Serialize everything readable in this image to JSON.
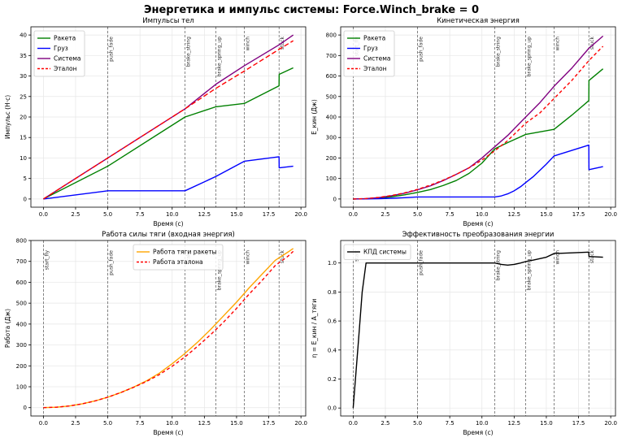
{
  "figure_title": "Энергетика и импульс системы: Force.Winch_brake = 0",
  "chart_data": [
    {
      "id": "p1",
      "type": "line",
      "title": "Импульсы тел",
      "xlabel": "Время (с)",
      "ylabel": "Импульс (Н·с)",
      "xlim": [
        -0.97,
        20.37
      ],
      "ylim": [
        -2.0,
        42.0
      ],
      "xticks": [
        0,
        2.5,
        5,
        7.5,
        10,
        12.5,
        15,
        17.5,
        20
      ],
      "xtick_labels": [
        "0.0",
        "2.5",
        "5.0",
        "7.5",
        "10.0",
        "12.5",
        "15.0",
        "17.5",
        "20.0"
      ],
      "yticks": [
        0,
        5,
        10,
        15,
        20,
        25,
        30,
        35,
        40
      ],
      "ytick_labels": [
        "0",
        "5",
        "10",
        "15",
        "20",
        "25",
        "30",
        "35",
        "40"
      ],
      "grid": true,
      "legend_position": "top-left",
      "events": [
        {
          "t": 5.0,
          "label": "push_fade"
        },
        {
          "t": 11.0,
          "label": "brake_string"
        },
        {
          "t": 13.4,
          "label": "brake_spring_up"
        },
        {
          "t": 15.6,
          "label": "winch"
        },
        {
          "t": 18.3,
          "label": "stuck"
        }
      ],
      "series": [
        {
          "name": "Ракета",
          "color": "#008000",
          "dash": "none",
          "x": [
            0,
            5,
            11,
            13.4,
            15.6,
            18.3,
            18.31,
            19.4
          ],
          "y": [
            0,
            8,
            20,
            22.5,
            23.3,
            27.6,
            30.4,
            32
          ]
        },
        {
          "name": "Груз",
          "color": "#0000ff",
          "dash": "none",
          "x": [
            0,
            5,
            11,
            13.4,
            15.6,
            18.3,
            18.31,
            19.4
          ],
          "y": [
            0,
            2,
            2,
            5.5,
            9.2,
            10.3,
            7.6,
            8
          ]
        },
        {
          "name": "Система",
          "color": "#800080",
          "dash": "none",
          "x": [
            0,
            5,
            11,
            13.4,
            15.6,
            18.3,
            19.4
          ],
          "y": [
            0,
            10,
            22,
            28,
            32.5,
            37.6,
            40
          ]
        },
        {
          "name": "Эталон",
          "color": "#ff0000",
          "dash": "6,3",
          "x": [
            0,
            5,
            11,
            13.4,
            15.6,
            18.3,
            19.4
          ],
          "y": [
            0,
            10,
            22,
            27,
            31.2,
            36.5,
            38.6
          ]
        }
      ]
    },
    {
      "id": "p2",
      "type": "line",
      "title": "Кинетическая энергия",
      "xlabel": "Время (с)",
      "ylabel": "E_кин (Дж)",
      "xlim": [
        -0.97,
        20.37
      ],
      "ylim": [
        -40,
        840
      ],
      "xticks": [
        0,
        2.5,
        5,
        7.5,
        10,
        12.5,
        15,
        17.5,
        20
      ],
      "xtick_labels": [
        "0.0",
        "2.5",
        "5.0",
        "7.5",
        "10.0",
        "12.5",
        "15.0",
        "17.5",
        "20.0"
      ],
      "yticks": [
        0,
        100,
        200,
        300,
        400,
        500,
        600,
        700,
        800
      ],
      "ytick_labels": [
        "0",
        "100",
        "200",
        "300",
        "400",
        "500",
        "600",
        "700",
        "800"
      ],
      "grid": true,
      "legend_position": "top-left",
      "events": [
        {
          "t": 0.0,
          "label": "start_fly"
        },
        {
          "t": 5.0,
          "label": "push_fade"
        },
        {
          "t": 11.0,
          "label": "brake_string"
        },
        {
          "t": 13.4,
          "label": "brake_spring_up"
        },
        {
          "t": 15.6,
          "label": "winch"
        },
        {
          "t": 18.3,
          "label": "stuck"
        }
      ],
      "series": [
        {
          "name": "Ракета",
          "color": "#008000",
          "dash": "none",
          "x": [
            0,
            1,
            2,
            3,
            4,
            5,
            6,
            7,
            8,
            9,
            10,
            11,
            12,
            13.4,
            15.6,
            17,
            18.3,
            18.31,
            19.4
          ],
          "y": [
            0,
            1.3,
            5,
            11,
            20,
            32,
            46,
            66,
            90,
            125,
            175,
            245,
            275,
            315,
            340,
            410,
            480,
            578,
            635
          ]
        },
        {
          "name": "Груз",
          "color": "#0000ff",
          "dash": "none",
          "x": [
            0,
            1,
            2,
            3,
            4,
            5,
            6,
            7,
            8,
            9,
            10,
            11,
            11.5,
            12,
            12.5,
            13,
            13.4,
            14,
            14.5,
            15,
            15.6,
            18.3,
            18.31,
            19.4
          ],
          "y": [
            0,
            0.4,
            1.6,
            3.6,
            6.4,
            10,
            10,
            10,
            10,
            10,
            10,
            10,
            15,
            25,
            40,
            60,
            80,
            110,
            140,
            170,
            210,
            263,
            143,
            158
          ]
        },
        {
          "name": "Система",
          "color": "#800080",
          "dash": "none",
          "x": [
            0,
            1,
            2,
            3,
            4,
            5,
            6,
            7,
            8,
            9,
            10,
            11,
            12,
            13.4,
            14.5,
            15.6,
            17,
            18.3,
            19.4
          ],
          "y": [
            0,
            2,
            7,
            16,
            28,
            45,
            64,
            90,
            120,
            152,
            200,
            255,
            310,
            400,
            470,
            550,
            640,
            735,
            795
          ]
        },
        {
          "name": "Эталон",
          "color": "#ff0000",
          "dash": "4,3",
          "x": [
            0,
            1,
            2,
            3,
            4,
            5,
            6,
            7,
            8,
            9,
            10,
            11,
            12,
            13.4,
            14.5,
            15.6,
            17,
            18.3,
            19.4
          ],
          "y": [
            0,
            2,
            8,
            17,
            30,
            47,
            68,
            92,
            120,
            152,
            190,
            235,
            285,
            370,
            420,
            490,
            580,
            675,
            745
          ]
        }
      ]
    },
    {
      "id": "p3",
      "type": "line",
      "title": "Работа силы тяги (входная энергия)",
      "xlabel": "Время (с)",
      "ylabel": "Работа (Дж)",
      "xlim": [
        -0.97,
        20.37
      ],
      "ylim": [
        -40,
        800
      ],
      "xticks": [
        0,
        2.5,
        5,
        7.5,
        10,
        12.5,
        15,
        17.5,
        20
      ],
      "xtick_labels": [
        "0.0",
        "2.5",
        "5.0",
        "7.5",
        "10.0",
        "12.5",
        "15.0",
        "17.5",
        "20.0"
      ],
      "yticks": [
        0,
        100,
        200,
        300,
        400,
        500,
        600,
        700,
        800
      ],
      "ytick_labels": [
        "0",
        "100",
        "200",
        "300",
        "400",
        "500",
        "600",
        "700",
        "800"
      ],
      "grid": true,
      "legend_position": "top-center",
      "events": [
        {
          "t": 0.0,
          "label": "start_fly"
        },
        {
          "t": 5.0,
          "label": "push_fade"
        },
        {
          "t": 11.0,
          "label": "brake"
        },
        {
          "t": 13.4,
          "label": "brake_spring_up"
        },
        {
          "t": 15.6,
          "label": "winch"
        },
        {
          "t": 18.3,
          "label": "stuck"
        }
      ],
      "series": [
        {
          "name": "Работа тяги ракеты",
          "color": "#ffa500",
          "dash": "none",
          "x": [
            0,
            1,
            2,
            3,
            4,
            5,
            6,
            7,
            8,
            9,
            10,
            11,
            12,
            13,
            14,
            15,
            16,
            17,
            18,
            19,
            19.4
          ],
          "y": [
            0,
            2,
            8,
            18,
            32,
            50,
            72,
            98,
            128,
            165,
            210,
            260,
            315,
            375,
            440,
            505,
            575,
            640,
            705,
            745,
            762
          ]
        },
        {
          "name": "Работа эталона",
          "color": "#ff0000",
          "dash": "4,3",
          "x": [
            0,
            1,
            2,
            3,
            4,
            5,
            6,
            7,
            8,
            9,
            10,
            11,
            12,
            13,
            14,
            15,
            16,
            17,
            18,
            19,
            19.4
          ],
          "y": [
            0,
            2,
            8,
            18,
            32,
            50,
            72,
            97,
            125,
            158,
            198,
            243,
            295,
            350,
            410,
            475,
            545,
            610,
            680,
            725,
            748
          ]
        }
      ]
    },
    {
      "id": "p4",
      "type": "line",
      "title": "Эффективность преобразования энергии",
      "xlabel": "Время (с)",
      "ylabel": "η = E_кин / A_тяги",
      "xlim": [
        -0.97,
        20.37
      ],
      "ylim": [
        -0.055,
        1.155
      ],
      "xticks": [
        0,
        2.5,
        5,
        7.5,
        10,
        12.5,
        15,
        17.5,
        20
      ],
      "xtick_labels": [
        "0.0",
        "2.5",
        "5.0",
        "7.5",
        "10.0",
        "12.5",
        "15.0",
        "17.5",
        "20.0"
      ],
      "yticks": [
        0.0,
        0.2,
        0.4,
        0.6,
        0.8,
        1.0
      ],
      "ytick_labels": [
        "0.0",
        "0.2",
        "0.4",
        "0.6",
        "0.8",
        "1.0"
      ],
      "grid": true,
      "legend_position": "top-left",
      "events": [
        {
          "t": 0.0,
          "label": "start"
        },
        {
          "t": 5.0,
          "label": "push_fade"
        },
        {
          "t": 11.0,
          "label": "brake_string"
        },
        {
          "t": 13.4,
          "label": "brake_spring_up"
        },
        {
          "t": 15.6,
          "label": "winch"
        },
        {
          "t": 18.3,
          "label": "stuck"
        }
      ],
      "series": [
        {
          "name": "КПД системы",
          "color": "#000000",
          "dash": "none",
          "x": [
            0,
            0.4,
            0.7,
            1.0,
            2,
            5,
            8,
            11,
            11.5,
            12,
            12.5,
            13,
            13.4,
            14,
            15,
            15.6,
            17,
            18.3,
            18.31,
            19.4
          ],
          "y": [
            0,
            0.45,
            0.8,
            1.0,
            1.0,
            1.0,
            1.0,
            1.0,
            0.99,
            0.985,
            0.99,
            1.0,
            1.01,
            1.02,
            1.04,
            1.065,
            1.07,
            1.075,
            1.045,
            1.04
          ]
        }
      ]
    }
  ]
}
